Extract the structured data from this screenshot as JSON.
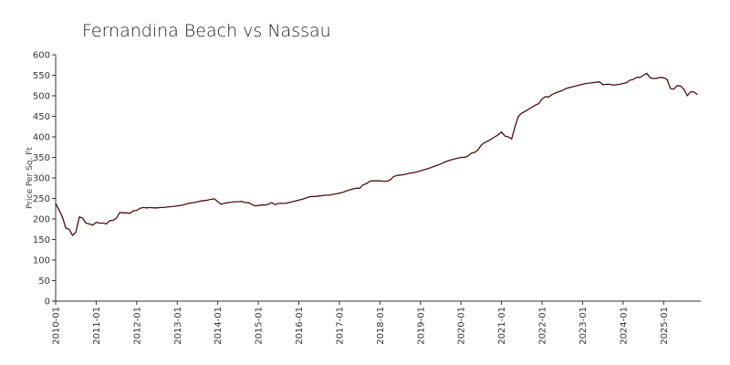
{
  "chart_data": {
    "type": "line",
    "title": "Fernandina Beach vs Nassau",
    "ylabel": "Price Per Sq. Ft",
    "xlabel": "",
    "ylim": [
      0,
      600
    ],
    "yticks": [
      0,
      50,
      100,
      150,
      200,
      250,
      300,
      350,
      400,
      450,
      500,
      550,
      600
    ],
    "xlim": [
      "2010-01",
      "2025-12"
    ],
    "xticks": [
      "2010-01",
      "2011-01",
      "2012-01",
      "2013-01",
      "2014-01",
      "2015-01",
      "2016-01",
      "2017-01",
      "2018-01",
      "2019-01",
      "2020-01",
      "2021-01",
      "2022-01",
      "2023-01",
      "2024-01",
      "2025-01"
    ],
    "grid": false,
    "legend": "none",
    "colors": {
      "series": "#4a0f12"
    },
    "series": [
      {
        "points": [
          [
            "2010-01",
            238
          ],
          [
            "2010-02",
            222
          ],
          [
            "2010-03",
            205
          ],
          [
            "2010-04",
            178
          ],
          [
            "2010-05",
            175
          ],
          [
            "2010-06",
            160
          ],
          [
            "2010-07",
            168
          ],
          [
            "2010-08",
            205
          ],
          [
            "2010-09",
            202
          ],
          [
            "2010-10",
            190
          ],
          [
            "2010-11",
            188
          ],
          [
            "2010-12",
            185
          ],
          [
            "2011-01",
            192
          ],
          [
            "2011-02",
            190
          ],
          [
            "2011-03",
            190
          ],
          [
            "2011-04",
            188
          ],
          [
            "2011-05",
            196
          ],
          [
            "2011-06",
            197
          ],
          [
            "2011-07",
            202
          ],
          [
            "2011-08",
            216
          ],
          [
            "2011-09",
            215
          ],
          [
            "2011-10",
            215
          ],
          [
            "2011-11",
            214
          ],
          [
            "2011-12",
            220
          ],
          [
            "2012-01",
            221
          ],
          [
            "2012-02",
            226
          ],
          [
            "2012-03",
            228
          ],
          [
            "2012-04",
            227
          ],
          [
            "2012-05",
            228
          ],
          [
            "2012-06",
            227
          ],
          [
            "2012-07",
            227
          ],
          [
            "2012-08",
            228
          ],
          [
            "2012-09",
            228
          ],
          [
            "2012-10",
            229
          ],
          [
            "2012-11",
            230
          ],
          [
            "2012-12",
            231
          ],
          [
            "2013-01",
            232
          ],
          [
            "2013-02",
            233
          ],
          [
            "2013-03",
            235
          ],
          [
            "2013-04",
            237
          ],
          [
            "2013-05",
            239
          ],
          [
            "2013-06",
            240
          ],
          [
            "2013-07",
            242
          ],
          [
            "2013-08",
            244
          ],
          [
            "2013-09",
            245
          ],
          [
            "2013-10",
            246
          ],
          [
            "2013-11",
            248
          ],
          [
            "2013-12",
            249
          ],
          [
            "2014-01",
            242
          ],
          [
            "2014-02",
            236
          ],
          [
            "2014-03",
            238
          ],
          [
            "2014-04",
            240
          ],
          [
            "2014-05",
            241
          ],
          [
            "2014-06",
            242
          ],
          [
            "2014-07",
            242
          ],
          [
            "2014-08",
            243
          ],
          [
            "2014-09",
            240
          ],
          [
            "2014-10",
            240
          ],
          [
            "2014-11",
            236
          ],
          [
            "2014-12",
            232
          ],
          [
            "2015-01",
            233
          ],
          [
            "2015-02",
            234
          ],
          [
            "2015-03",
            234
          ],
          [
            "2015-04",
            236
          ],
          [
            "2015-05",
            240
          ],
          [
            "2015-06",
            235
          ],
          [
            "2015-07",
            238
          ],
          [
            "2015-08",
            238
          ],
          [
            "2015-09",
            238
          ],
          [
            "2015-10",
            240
          ],
          [
            "2015-11",
            242
          ],
          [
            "2015-12",
            244
          ],
          [
            "2016-01",
            246
          ],
          [
            "2016-02",
            248
          ],
          [
            "2016-03",
            251
          ],
          [
            "2016-04",
            254
          ],
          [
            "2016-05",
            255
          ],
          [
            "2016-06",
            255
          ],
          [
            "2016-07",
            256
          ],
          [
            "2016-08",
            257
          ],
          [
            "2016-09",
            258
          ],
          [
            "2016-10",
            258
          ],
          [
            "2016-11",
            260
          ],
          [
            "2016-12",
            261
          ],
          [
            "2017-01",
            263
          ],
          [
            "2017-02",
            265
          ],
          [
            "2017-03",
            268
          ],
          [
            "2017-04",
            271
          ],
          [
            "2017-05",
            273
          ],
          [
            "2017-06",
            275
          ],
          [
            "2017-07",
            275
          ],
          [
            "2017-08",
            283
          ],
          [
            "2017-09",
            286
          ],
          [
            "2017-10",
            292
          ],
          [
            "2017-11",
            293
          ],
          [
            "2017-12",
            293
          ],
          [
            "2018-01",
            293
          ],
          [
            "2018-02",
            292
          ],
          [
            "2018-03",
            292
          ],
          [
            "2018-04",
            295
          ],
          [
            "2018-05",
            303
          ],
          [
            "2018-06",
            306
          ],
          [
            "2018-07",
            307
          ],
          [
            "2018-08",
            308
          ],
          [
            "2018-09",
            310
          ],
          [
            "2018-10",
            312
          ],
          [
            "2018-11",
            313
          ],
          [
            "2018-12",
            315
          ],
          [
            "2019-01",
            317
          ],
          [
            "2019-02",
            320
          ],
          [
            "2019-03",
            322
          ],
          [
            "2019-04",
            325
          ],
          [
            "2019-05",
            328
          ],
          [
            "2019-06",
            331
          ],
          [
            "2019-07",
            334
          ],
          [
            "2019-08",
            338
          ],
          [
            "2019-09",
            341
          ],
          [
            "2019-10",
            344
          ],
          [
            "2019-11",
            346
          ],
          [
            "2019-12",
            348
          ],
          [
            "2020-01",
            350
          ],
          [
            "2020-02",
            350
          ],
          [
            "2020-03",
            353
          ],
          [
            "2020-04",
            360
          ],
          [
            "2020-05",
            362
          ],
          [
            "2020-06",
            368
          ],
          [
            "2020-07",
            380
          ],
          [
            "2020-08",
            386
          ],
          [
            "2020-09",
            390
          ],
          [
            "2020-10",
            395
          ],
          [
            "2020-11",
            400
          ],
          [
            "2020-12",
            405
          ],
          [
            "2021-01",
            412
          ],
          [
            "2021-02",
            402
          ],
          [
            "2021-03",
            400
          ],
          [
            "2021-04",
            395
          ],
          [
            "2021-05",
            425
          ],
          [
            "2021-06",
            450
          ],
          [
            "2021-07",
            458
          ],
          [
            "2021-08",
            462
          ],
          [
            "2021-09",
            467
          ],
          [
            "2021-10",
            472
          ],
          [
            "2021-11",
            477
          ],
          [
            "2021-12",
            481
          ],
          [
            "2022-01",
            492
          ],
          [
            "2022-02",
            498
          ],
          [
            "2022-03",
            497
          ],
          [
            "2022-04",
            503
          ],
          [
            "2022-05",
            507
          ],
          [
            "2022-06",
            510
          ],
          [
            "2022-07",
            513
          ],
          [
            "2022-08",
            517
          ],
          [
            "2022-09",
            520
          ],
          [
            "2022-10",
            522
          ],
          [
            "2022-11",
            524
          ],
          [
            "2022-12",
            526
          ],
          [
            "2023-01",
            528
          ],
          [
            "2023-02",
            530
          ],
          [
            "2023-03",
            531
          ],
          [
            "2023-04",
            532
          ],
          [
            "2023-05",
            533
          ],
          [
            "2023-06",
            534
          ],
          [
            "2023-07",
            527
          ],
          [
            "2023-08",
            528
          ],
          [
            "2023-09",
            528
          ],
          [
            "2023-10",
            526
          ],
          [
            "2023-11",
            527
          ],
          [
            "2023-12",
            528
          ],
          [
            "2024-01",
            530
          ],
          [
            "2024-02",
            532
          ],
          [
            "2024-03",
            538
          ],
          [
            "2024-04",
            540
          ],
          [
            "2024-05",
            545
          ],
          [
            "2024-06",
            545
          ],
          [
            "2024-07",
            550
          ],
          [
            "2024-08",
            555
          ],
          [
            "2024-09",
            544
          ],
          [
            "2024-10",
            542
          ],
          [
            "2024-11",
            543
          ],
          [
            "2024-12",
            545
          ],
          [
            "2025-01",
            544
          ],
          [
            "2025-02",
            540
          ],
          [
            "2025-03",
            518
          ],
          [
            "2025-04",
            516
          ],
          [
            "2025-05",
            525
          ],
          [
            "2025-06",
            524
          ],
          [
            "2025-07",
            516
          ],
          [
            "2025-08",
            500
          ],
          [
            "2025-09",
            510
          ],
          [
            "2025-10",
            509
          ],
          [
            "2025-11",
            503
          ]
        ]
      }
    ]
  }
}
